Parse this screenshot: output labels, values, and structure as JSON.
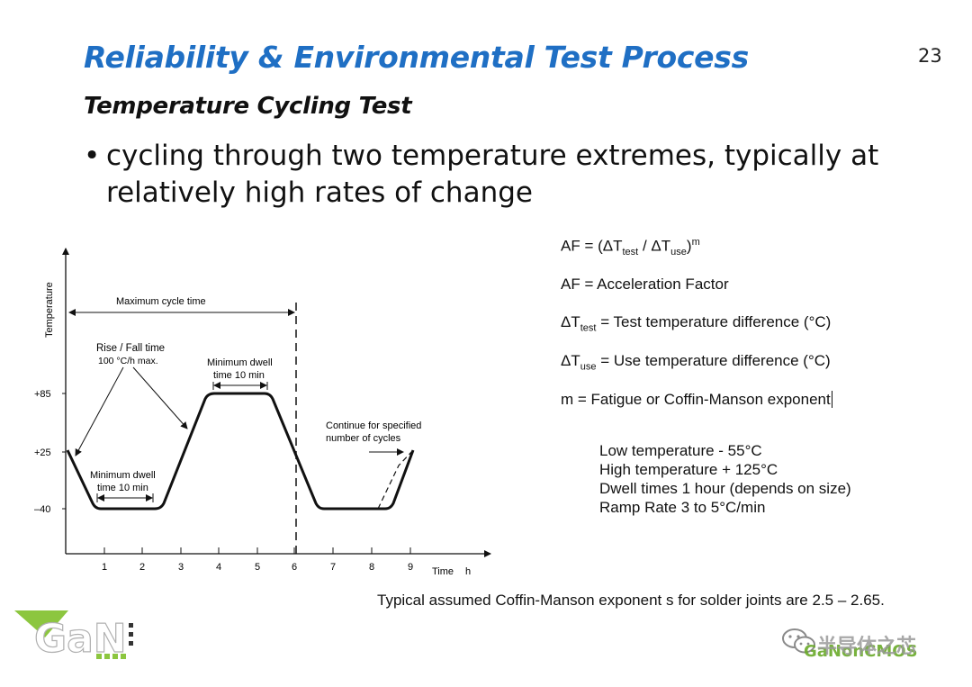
{
  "slide": {
    "title": "Reliability & Environmental Test Process",
    "page_number": "23",
    "subtitle": "Temperature Cycling Test",
    "bullet": "cycling through two temperature extremes, typically at relatively high rates of change"
  },
  "diagram": {
    "y_axis_label": "Temperature",
    "x_axis_label": "Time",
    "x_axis_unit": "h",
    "y_ticks": [
      "+85",
      "+25",
      "–40"
    ],
    "x_ticks": [
      "1",
      "2",
      "3",
      "4",
      "5",
      "6",
      "7",
      "8",
      "9"
    ],
    "annotations": {
      "max_cycle_time": "Maximum cycle time",
      "rise_fall_1": "Rise / Fall time",
      "rise_fall_2": "100 °C/h max.",
      "min_dwell_high_1": "Minimum dwell",
      "min_dwell_high_2": "time 10 min",
      "min_dwell_low_1": "Minimum dwell",
      "min_dwell_low_2": "time 10 min",
      "continue_1": "Continue for specified",
      "continue_2": "number of cycles"
    }
  },
  "equations": {
    "af_formula": {
      "lhs": "AF = (ΔT",
      "sub1": "test",
      "mid": " / ΔT",
      "sub2": "use",
      "close": ")",
      "exp": "m"
    },
    "af_def": "AF = Acceleration Factor",
    "dt_test": {
      "sym": "ΔT",
      "sub": "test",
      "text": " = Test temperature difference (°C)"
    },
    "dt_use": {
      "sym": "ΔT",
      "sub": "use",
      "text": " = Use temperature difference (°C)"
    },
    "m_def": "m = Fatigue or Coffin-Manson exponent"
  },
  "conditions": [
    "Low temperature - 55°C",
    "High temperature + 125°C",
    "Dwell times 1 hour (depends on size)",
    "Ramp Rate 3 to 5°C/min"
  ],
  "note": "Typical assumed Coffin-Manson exponent s for solder joints are 2.5 – 2.65.",
  "watermarks": {
    "left_logo": "GaN",
    "right_cn": "半导体之芯",
    "right_en": "GaNonCMOS"
  },
  "colors": {
    "title": "#1f6fc4",
    "logo_green": "#8cc63f"
  }
}
